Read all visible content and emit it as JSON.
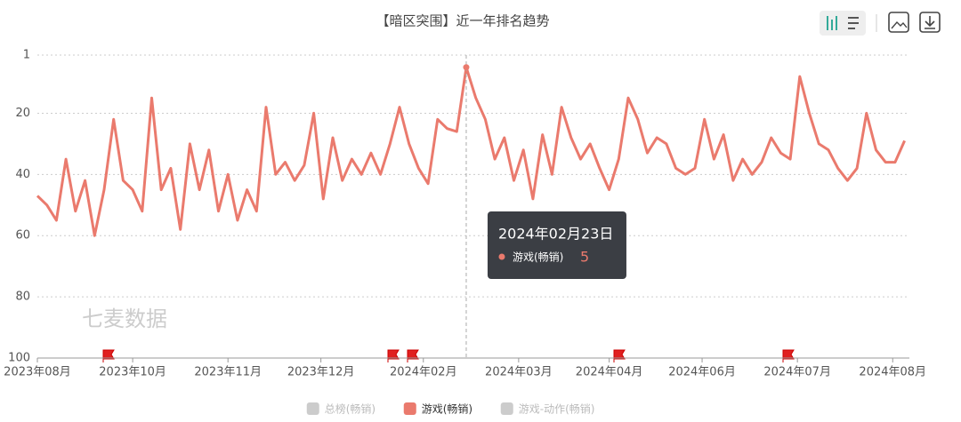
{
  "chart_data": {
    "type": "line",
    "title": "【暗区突围】近一年排名趋势",
    "watermark": "七麦数据",
    "x": [
      "2023-08-27",
      "2023-08-31",
      "2023-09-04",
      "2023-09-08",
      "2023-09-12",
      "2023-09-16",
      "2023-09-20",
      "2023-09-24",
      "2023-09-28",
      "2023-10-02",
      "2023-10-06",
      "2023-10-10",
      "2023-10-14",
      "2023-10-18",
      "2023-10-22",
      "2023-10-26",
      "2023-10-30",
      "2023-11-03",
      "2023-11-07",
      "2023-11-11",
      "2023-11-15",
      "2023-11-19",
      "2023-11-23",
      "2023-11-27",
      "2023-12-01",
      "2023-12-05",
      "2023-12-09",
      "2023-12-13",
      "2023-12-17",
      "2023-12-21",
      "2023-12-25",
      "2023-12-29",
      "2024-01-02",
      "2024-01-06",
      "2024-01-10",
      "2024-01-14",
      "2024-01-18",
      "2024-01-22",
      "2024-01-26",
      "2024-01-30",
      "2024-02-03",
      "2024-02-07",
      "2024-02-11",
      "2024-02-15",
      "2024-02-19",
      "2024-02-23",
      "2024-02-27",
      "2024-03-02",
      "2024-03-06",
      "2024-03-10",
      "2024-03-14",
      "2024-03-18",
      "2024-03-22",
      "2024-03-26",
      "2024-03-30",
      "2024-04-03",
      "2024-04-07",
      "2024-04-11",
      "2024-04-15",
      "2024-04-19",
      "2024-04-23",
      "2024-04-27",
      "2024-05-01",
      "2024-05-05",
      "2024-05-09",
      "2024-05-13",
      "2024-05-17",
      "2024-05-21",
      "2024-05-25",
      "2024-05-29",
      "2024-06-02",
      "2024-06-06",
      "2024-06-10",
      "2024-06-14",
      "2024-06-18",
      "2024-06-22",
      "2024-06-26",
      "2024-06-30",
      "2024-07-04",
      "2024-07-08",
      "2024-07-12",
      "2024-07-16",
      "2024-07-20",
      "2024-07-24",
      "2024-07-28",
      "2024-08-01",
      "2024-08-05",
      "2024-08-09",
      "2024-08-13",
      "2024-08-17",
      "2024-08-21",
      "2024-08-25"
    ],
    "series": [
      {
        "name": "游戏(畅销)",
        "color": "#ea7a6d",
        "values": [
          47,
          50,
          55,
          35,
          52,
          42,
          60,
          45,
          22,
          42,
          45,
          52,
          15,
          45,
          38,
          58,
          30,
          45,
          32,
          52,
          40,
          55,
          45,
          52,
          18,
          40,
          36,
          42,
          37,
          20,
          48,
          28,
          42,
          35,
          40,
          33,
          40,
          30,
          18,
          30,
          38,
          43,
          22,
          25,
          26,
          5,
          15,
          22,
          35,
          28,
          42,
          32,
          48,
          27,
          40,
          18,
          28,
          35,
          30,
          38,
          45,
          35,
          15,
          22,
          33,
          28,
          30,
          38,
          40,
          38,
          22,
          35,
          27,
          42,
          35,
          40,
          36,
          28,
          33,
          35,
          8,
          20,
          30,
          32,
          38,
          42,
          38,
          20,
          32,
          36,
          36,
          29
        ]
      }
    ],
    "legend": [
      {
        "name": "总榜(畅销)",
        "color": "#cccccc"
      },
      {
        "name": "游戏(畅销)",
        "color": "#ea7a6d"
      },
      {
        "name": "游戏-动作(畅销)",
        "color": "#cccccc"
      }
    ],
    "tooltip": {
      "date": "2024年02月23日",
      "index": 45
    },
    "xlim": [
      "2023-08-27",
      "2024-08-27"
    ],
    "xticks": [
      {
        "value": "2023-08-27",
        "label": "2023年08月"
      },
      {
        "value": "2023-10-06",
        "label": "2023年10月"
      },
      {
        "value": "2023-11-15",
        "label": "2023年11月"
      },
      {
        "value": "2023-12-24",
        "label": "2023年12月"
      },
      {
        "value": "2024-02-05",
        "label": "2024年02月"
      },
      {
        "value": "2024-03-16",
        "label": "2024年03月"
      },
      {
        "value": "2024-04-23",
        "label": "2024年04月"
      },
      {
        "value": "2024-06-01",
        "label": "2024年06月"
      },
      {
        "value": "2024-07-11",
        "label": "2024年07月"
      },
      {
        "value": "2024-08-20",
        "label": "2024年08月"
      }
    ],
    "ylim": [
      1,
      100
    ],
    "yticks": [
      1,
      20,
      40,
      60,
      80,
      100
    ],
    "y_inverted": true,
    "grid": true
  }
}
